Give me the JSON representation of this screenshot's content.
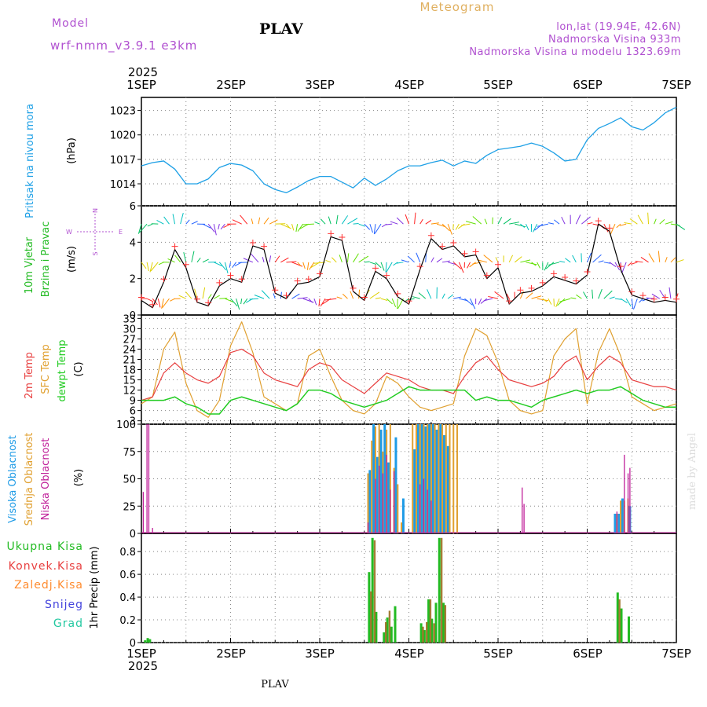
{
  "header": {
    "model_label": "Model",
    "model_name": "wrf-nmm_v3.9.1  e3km",
    "station": "PLAV",
    "title": "Meteogram",
    "lonlat": "lon,lat (19.94E, 42.6N)",
    "elevation": "Nadmorska Visina 933m",
    "model_elevation": "Nadmorska Visina u modelu 1323.69m"
  },
  "footer": {
    "station": "PLAV",
    "credit": "made by Angel"
  },
  "time_axis": {
    "year": "2025",
    "labels": [
      "1SEP",
      "2SEP",
      "3SEP",
      "4SEP",
      "5SEP",
      "6SEP",
      "7SEP"
    ]
  },
  "colors": {
    "pressure": "#1ea0e6",
    "t2m": "#e84040",
    "sfc": "#e0a030",
    "dew": "#22cc22",
    "wind": "#000000",
    "rh": "#1e9be6",
    "mh": "#e0a030",
    "low": "#c0209a",
    "total": "#22bb22",
    "conv": "#e84040",
    "frozen": "#ff8c30",
    "snow": "#4444dd",
    "grad": "#22c8a0",
    "model": "#b050d0",
    "elev": "#b050d0"
  },
  "chart_data": [
    {
      "panel": "pressure",
      "type": "line",
      "ylabel_main": "Pritisak na nivou mora",
      "unit": "(hPa)",
      "yticks": [
        "1014",
        "1017",
        "1020",
        "1023"
      ],
      "ylim": [
        1011.3,
        1024.6
      ],
      "series": [
        {
          "name": "MSLP",
          "x": [
            0,
            3,
            6,
            9,
            12,
            15,
            18,
            21,
            24,
            27,
            30,
            33,
            36,
            39,
            42,
            45,
            48,
            51,
            54,
            57,
            60,
            63,
            66,
            69,
            72,
            75,
            78,
            81,
            84,
            87,
            90,
            93,
            96,
            99,
            102,
            105,
            108,
            111,
            114,
            117,
            120,
            123,
            126,
            129,
            132,
            135,
            138,
            141,
            144
          ],
          "values": [
            1016.2,
            1016.6,
            1016.8,
            1015.8,
            1014.0,
            1014.0,
            1014.6,
            1016.0,
            1016.5,
            1016.3,
            1015.6,
            1014.0,
            1013.3,
            1012.9,
            1013.6,
            1014.4,
            1014.9,
            1014.9,
            1014.2,
            1013.5,
            1014.7,
            1013.8,
            1014.6,
            1015.6,
            1016.2,
            1016.2,
            1016.6,
            1016.9,
            1016.2,
            1016.8,
            1016.5,
            1017.5,
            1018.2,
            1018.4,
            1018.6,
            1019.0,
            1018.6,
            1017.8,
            1016.8,
            1017.0,
            1019.4,
            1020.8,
            1021.4,
            1022.1,
            1021.0,
            1020.6,
            1021.5,
            1022.7,
            1023.4
          ]
        }
      ]
    },
    {
      "panel": "wind",
      "type": "line",
      "ylabel_main": "10m Vjetar",
      "ylabel_sub": "Brzina i Pravac",
      "unit": "(m/s)",
      "compass": {
        "n": "N",
        "s": "S",
        "w": "W",
        "e": "E"
      },
      "yticks": [
        "0",
        "2",
        "4",
        "6"
      ],
      "ylim": [
        0,
        6
      ],
      "series": [
        {
          "name": "wind speed",
          "x": [
            0,
            3,
            6,
            9,
            12,
            15,
            18,
            21,
            24,
            27,
            30,
            33,
            36,
            39,
            42,
            45,
            48,
            51,
            54,
            57,
            60,
            63,
            66,
            69,
            72,
            75,
            78,
            81,
            84,
            87,
            90,
            93,
            96,
            99,
            102,
            105,
            108,
            111,
            114,
            117,
            120,
            123,
            126,
            129,
            132,
            135,
            138,
            141,
            144
          ],
          "values": [
            0.8,
            0.4,
            1.8,
            3.6,
            2.6,
            0.7,
            0.5,
            1.6,
            2.0,
            1.8,
            3.8,
            3.6,
            1.2,
            0.9,
            1.7,
            1.8,
            2.1,
            4.3,
            4.1,
            1.3,
            0.8,
            2.4,
            2.0,
            1.0,
            0.6,
            2.5,
            4.2,
            3.6,
            3.8,
            3.2,
            3.3,
            2.0,
            2.6,
            0.6,
            1.2,
            1.3,
            1.6,
            2.1,
            1.9,
            1.7,
            2.2,
            5.0,
            4.6,
            2.5,
            1.1,
            0.9,
            0.7,
            0.8,
            0.7
          ]
        }
      ]
    },
    {
      "panel": "temperature",
      "type": "line",
      "ylabel_lines": [
        "2m Temp",
        "SFC Temp",
        "dewpt Temp"
      ],
      "unit": "(C)",
      "yticks": [
        "3",
        "6",
        "9",
        "12",
        "15",
        "18",
        "21",
        "24",
        "27",
        "30",
        "33"
      ],
      "ylim": [
        2,
        34
      ],
      "series": [
        {
          "name": "2m Temp",
          "x": [
            0,
            3,
            6,
            9,
            12,
            15,
            18,
            21,
            24,
            27,
            30,
            33,
            36,
            39,
            42,
            45,
            48,
            51,
            54,
            57,
            60,
            63,
            66,
            69,
            72,
            75,
            78,
            81,
            84,
            87,
            90,
            93,
            96,
            99,
            102,
            105,
            108,
            111,
            114,
            117,
            120,
            123,
            126,
            129,
            132,
            135,
            138,
            141,
            144
          ],
          "values": [
            9,
            10,
            17,
            20,
            17,
            15,
            14,
            16,
            23,
            24,
            22,
            17,
            15,
            14,
            13,
            18,
            20,
            19,
            15,
            13,
            11,
            14,
            17,
            16,
            15,
            13,
            12,
            12,
            11,
            16,
            20,
            22,
            18,
            15,
            14,
            13,
            14,
            16,
            20,
            22,
            15,
            19,
            22,
            20,
            15,
            14,
            13,
            13,
            12
          ]
        },
        {
          "name": "SFC Temp",
          "x": [
            0,
            3,
            6,
            9,
            12,
            15,
            18,
            21,
            24,
            27,
            30,
            33,
            36,
            39,
            42,
            45,
            48,
            51,
            54,
            57,
            60,
            63,
            66,
            69,
            72,
            75,
            78,
            81,
            84,
            87,
            90,
            93,
            96,
            99,
            102,
            105,
            108,
            111,
            114,
            117,
            120,
            123,
            126,
            129,
            132,
            135,
            138,
            141,
            144
          ],
          "values": [
            8,
            10,
            24,
            29,
            14,
            6,
            4,
            9,
            25,
            32,
            23,
            10,
            8,
            6,
            8,
            22,
            24,
            16,
            9,
            6,
            5,
            8,
            16,
            14,
            10,
            7,
            6,
            7,
            8,
            22,
            30,
            28,
            20,
            9,
            6,
            5,
            6,
            22,
            27,
            30,
            8,
            23,
            30,
            22,
            10,
            8,
            6,
            7,
            8
          ]
        },
        {
          "name": "dewpt Temp",
          "x": [
            0,
            3,
            6,
            9,
            12,
            15,
            18,
            21,
            24,
            27,
            30,
            33,
            36,
            39,
            42,
            45,
            48,
            51,
            54,
            57,
            60,
            63,
            66,
            69,
            72,
            75,
            78,
            81,
            84,
            87,
            90,
            93,
            96,
            99,
            102,
            105,
            108,
            111,
            114,
            117,
            120,
            123,
            126,
            129,
            132,
            135,
            138,
            141,
            144
          ],
          "values": [
            9,
            9,
            9,
            10,
            8,
            7,
            5,
            5,
            9,
            10,
            9,
            8,
            7,
            6,
            8,
            12,
            12,
            11,
            9,
            8,
            7,
            8,
            9,
            11,
            13,
            12,
            12,
            12,
            12,
            12,
            9,
            10,
            9,
            9,
            8,
            7,
            9,
            10,
            11,
            12,
            11,
            12,
            12,
            13,
            11,
            9,
            8,
            7,
            7
          ]
        }
      ]
    },
    {
      "panel": "cloud",
      "type": "bar",
      "ylabel_lines": [
        "Visoka Oblacnost",
        "Srednja Oblacnost",
        "Niska Oblacnost"
      ],
      "unit": "(%)",
      "yticks": [
        "0",
        "25",
        "50",
        "75",
        "100"
      ],
      "ylim": [
        0,
        100
      ],
      "series": [
        {
          "name": "Visoka Oblacnost",
          "x": [
            61.5,
            62.5,
            63.5,
            64.5,
            65.5,
            66.5,
            68.5,
            70.5,
            73.5,
            74.5,
            75.5,
            76.5,
            77.5,
            78.5,
            79.5,
            80.5,
            81.5,
            82.5,
            127.5,
            128.5,
            129.5,
            131.5
          ],
          "values": [
            58,
            100,
            70,
            95,
            100,
            65,
            88,
            32,
            77,
            100,
            100,
            98,
            100,
            100,
            95,
            100,
            90,
            80,
            18,
            18,
            32,
            25
          ]
        },
        {
          "name": "Srednja Oblacnost",
          "x": [
            61,
            62,
            63,
            64,
            65,
            66,
            67,
            68,
            69,
            70,
            73,
            74,
            75,
            76,
            77,
            78,
            79,
            80,
            81,
            82,
            83,
            84,
            85,
            128,
            129,
            130,
            131
          ],
          "values": [
            55,
            85,
            98,
            100,
            75,
            95,
            100,
            60,
            45,
            10,
            100,
            100,
            100,
            100,
            100,
            100,
            100,
            100,
            100,
            100,
            100,
            100,
            100,
            18,
            30,
            30,
            32
          ]
        },
        {
          "name": "Niska Oblacnost",
          "x": [
            0.5,
            1.5,
            2,
            3,
            61,
            63,
            64,
            65,
            66,
            67,
            68,
            75,
            76,
            77,
            78,
            128,
            130,
            131,
            131.5,
            102.5,
            103
          ],
          "values": [
            38,
            100,
            100,
            5,
            10,
            50,
            62,
            55,
            72,
            40,
            57,
            45,
            50,
            40,
            30,
            20,
            72,
            55,
            60,
            42,
            27
          ]
        }
      ]
    },
    {
      "panel": "precip",
      "type": "bar",
      "legend": [
        "Ukupna Kisa",
        "Konvek.Kisa",
        "Zaledj.Kisa",
        "Snijeg",
        "Grad"
      ],
      "ylabel_lines": [
        "1hr Precip (mm)"
      ],
      "yticks": [
        "0",
        "0.2",
        "0.4",
        "0.6",
        "0.8"
      ],
      "ylim": [
        0,
        0.96
      ],
      "series": [
        {
          "name": "Ukupna Kisa",
          "x": [
            1,
            1.7,
            2.3,
            61.3,
            62.2,
            63.2,
            65.3,
            66.2,
            67.3,
            68.3,
            75.3,
            76.2,
            77.3,
            78.2,
            79.3,
            80.2,
            81.3,
            128.2,
            129.2,
            131.2
          ],
          "values": [
            0.02,
            0.04,
            0.03,
            0.62,
            0.92,
            0.27,
            0.09,
            0.22,
            0.14,
            0.32,
            0.17,
            0.11,
            0.38,
            0.21,
            0.35,
            0.92,
            0.35,
            0.44,
            0.3,
            0.23
          ]
        },
        {
          "name": "Konvek.Kisa",
          "x": [
            61.8,
            62.8,
            65.8,
            66.8,
            75.8,
            76.8,
            77.8,
            78.8,
            80.8,
            81.8,
            128.7
          ],
          "values": [
            0.45,
            0.9,
            0.18,
            0.28,
            0.14,
            0.18,
            0.38,
            0.17,
            0.92,
            0.33,
            0.38
          ]
        },
        {
          "name": "Zaledj.Kisa",
          "x": [],
          "values": []
        },
        {
          "name": "Snijeg",
          "x": [],
          "values": []
        },
        {
          "name": "Grad",
          "x": [],
          "values": []
        }
      ]
    }
  ]
}
